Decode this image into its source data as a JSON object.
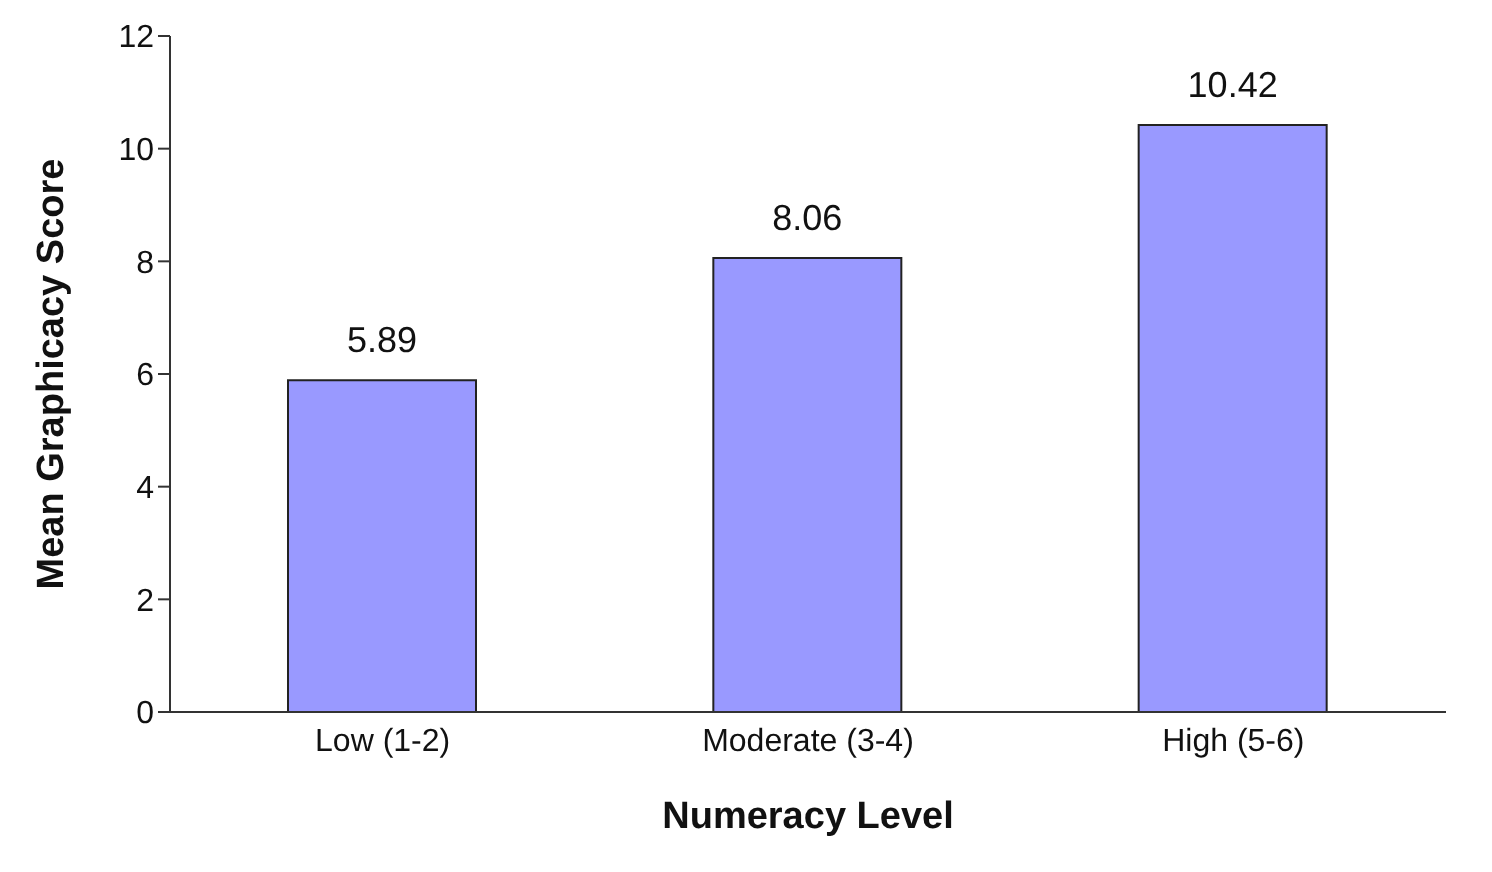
{
  "chart_data": {
    "type": "bar",
    "xlabel": "Numeracy Level",
    "ylabel": "Mean Graphicacy Score",
    "categories": [
      "Low (1-2)",
      "Moderate (3-4)",
      "High (5-6)"
    ],
    "values": [
      5.89,
      8.06,
      10.42
    ],
    "color": "#9999ff",
    "ylim": [
      0,
      12
    ],
    "yticks": [
      0,
      2,
      4,
      6,
      8,
      10,
      12
    ],
    "data_labels": true,
    "grid": false,
    "legend": false
  }
}
